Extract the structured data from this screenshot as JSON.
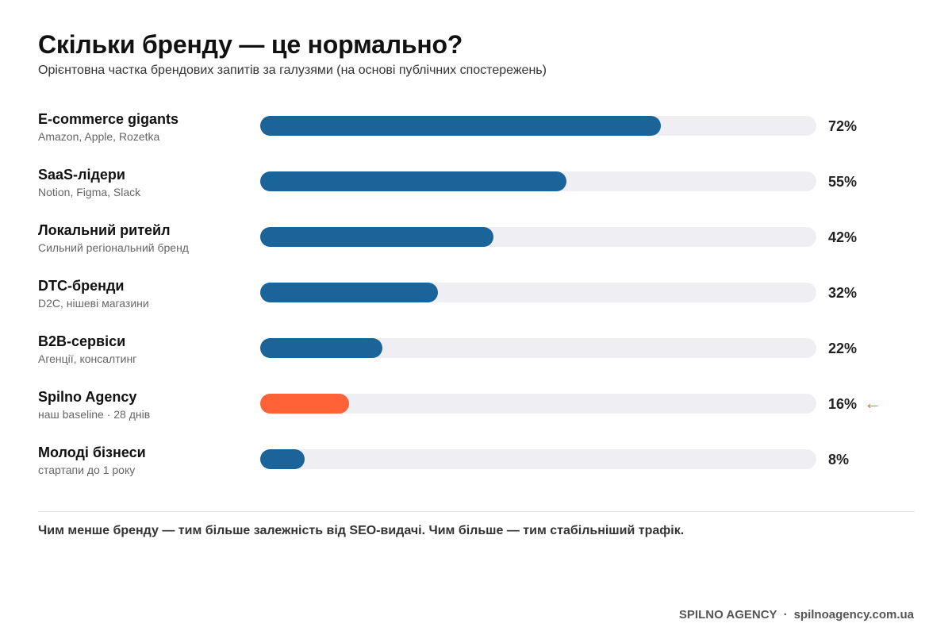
{
  "header": {
    "title": "Скільки бренду — це нормально?",
    "subtitle": "Орієнтовна частка брендових запитів за галузями (на основі публічних спостережень)"
  },
  "chart_data": {
    "type": "bar",
    "orientation": "horizontal",
    "title": "Скільки бренду — це нормально?",
    "subtitle": "Орієнтовна частка брендових запитів за галузями (на основі публічних спостережень)",
    "xlim": [
      0,
      100
    ],
    "unit": "%",
    "grid": false,
    "categories": [
      {
        "label": "E-commerce gigants",
        "sublabel": "Amazon, Apple, Rozetka",
        "value": 72,
        "value_label": "72%",
        "highlight": false
      },
      {
        "label": "SaaS-лідери",
        "sublabel": "Notion, Figma, Slack",
        "value": 55,
        "value_label": "55%",
        "highlight": false
      },
      {
        "label": "Локальний ритейл",
        "sublabel": "Сильний регіональний бренд",
        "value": 42,
        "value_label": "42%",
        "highlight": false
      },
      {
        "label": "DTC-бренди",
        "sublabel": "D2C, нішеві магазини",
        "value": 32,
        "value_label": "32%",
        "highlight": false
      },
      {
        "label": "B2B-сервіси",
        "sublabel": "Агенції, консалтинг",
        "value": 22,
        "value_label": "22%",
        "highlight": false
      },
      {
        "label": "Spilno Agency",
        "sublabel": "наш baseline · 28 днів",
        "value": 16,
        "value_label": "16%",
        "highlight": true,
        "marker": "←"
      },
      {
        "label": "Молоді бізнеси",
        "sublabel": "стартапи до 1 року",
        "value": 8,
        "value_label": "8%",
        "highlight": false
      }
    ],
    "colors": {
      "bar": "#1a6499",
      "highlight": "#ff6236",
      "track": "#efeff3"
    }
  },
  "footer_note": "Чим менше бренду — тим більше залежність від SEO-видачі. Чим більше — тим стабільніший трафік.",
  "footer": {
    "brand": "SPILNO AGENCY",
    "separator": "·",
    "site": "spilnoagency.com.ua"
  }
}
